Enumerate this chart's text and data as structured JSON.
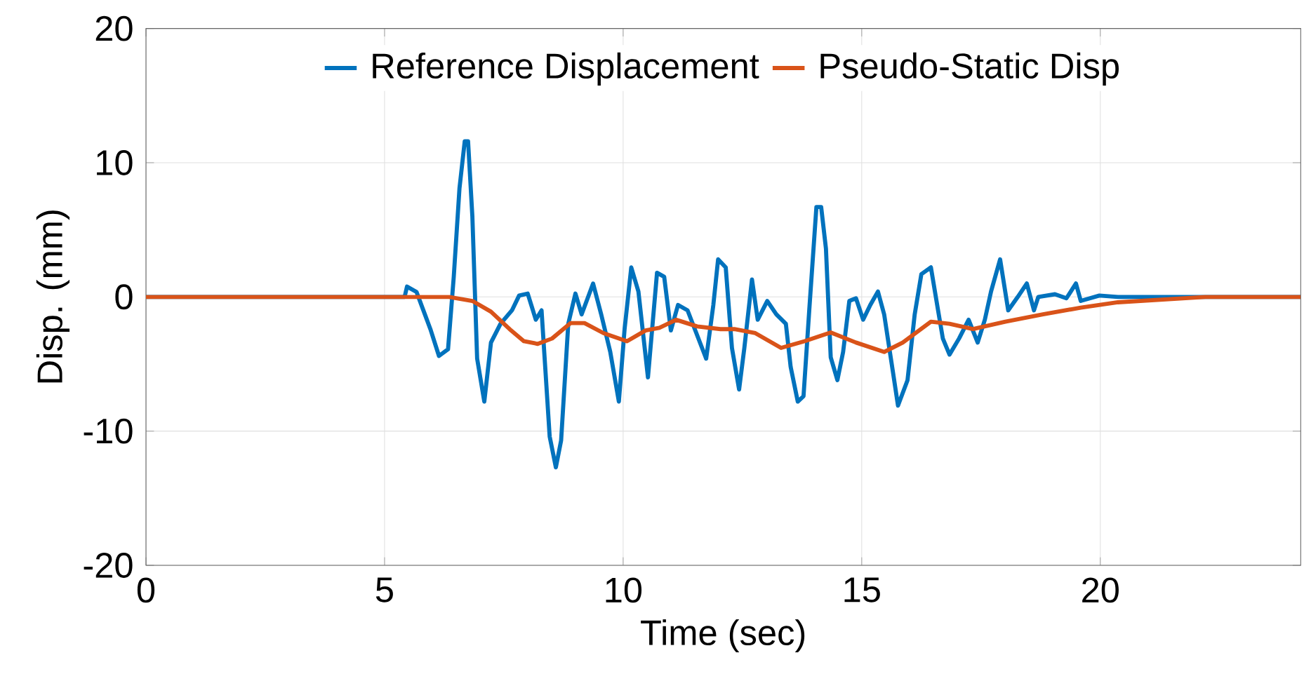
{
  "chart_data": {
    "type": "line",
    "xlabel": "Time (sec)",
    "ylabel": "Disp. (mm)",
    "xlim": [
      0,
      24.2
    ],
    "ylim": [
      -20,
      20
    ],
    "xticks": [
      0,
      5,
      10,
      15,
      20
    ],
    "yticks": [
      -20,
      -10,
      0,
      10,
      20
    ],
    "grid": true,
    "legend": "top",
    "marker": "none",
    "line_style": "solid",
    "series": [
      {
        "name": "Reference Displacement",
        "color": "#0072bd",
        "x": [
          0,
          5.42,
          5.47,
          5.67,
          5.81,
          5.96,
          6.14,
          6.33,
          6.45,
          6.57,
          6.68,
          6.75,
          6.84,
          6.94,
          7.09,
          7.23,
          7.43,
          7.67,
          7.82,
          8.0,
          8.17,
          8.29,
          8.46,
          8.59,
          8.7,
          8.85,
          9.0,
          9.13,
          9.37,
          9.54,
          9.73,
          9.91,
          10.03,
          10.17,
          10.32,
          10.52,
          10.71,
          10.86,
          11.0,
          11.15,
          11.35,
          11.74,
          11.89,
          11.99,
          12.15,
          12.28,
          12.43,
          12.54,
          12.7,
          12.82,
          13.02,
          13.21,
          13.41,
          13.51,
          13.66,
          13.78,
          13.9,
          14.05,
          14.15,
          14.25,
          14.35,
          14.49,
          14.61,
          14.74,
          14.88,
          15.03,
          15.18,
          15.34,
          15.47,
          15.65,
          15.76,
          15.96,
          16.11,
          16.25,
          16.45,
          16.6,
          16.7,
          16.84,
          17.04,
          17.24,
          17.43,
          17.58,
          17.71,
          17.9,
          18.07,
          18.27,
          18.46,
          18.61,
          18.7,
          19.05,
          19.29,
          19.49,
          19.59,
          19.98,
          20.37,
          24.2
        ],
        "values": [
          0,
          0,
          0.77,
          0.37,
          -0.97,
          -2.4,
          -4.4,
          -3.9,
          1.5,
          8.1,
          11.6,
          11.6,
          6.0,
          -4.6,
          -7.8,
          -3.4,
          -2.0,
          -1.0,
          0.1,
          0.25,
          -1.7,
          -1.0,
          -10.4,
          -12.7,
          -10.7,
          -2.0,
          0.25,
          -1.3,
          1.0,
          -1.3,
          -4.1,
          -7.8,
          -2.4,
          2.2,
          0.4,
          -6.0,
          1.8,
          1.5,
          -2.5,
          -0.6,
          -1.0,
          -4.6,
          -0.6,
          2.8,
          2.2,
          -3.8,
          -6.9,
          -3.8,
          1.3,
          -1.7,
          -0.3,
          -1.3,
          -2.0,
          -5.2,
          -7.8,
          -7.4,
          -1.0,
          6.7,
          6.7,
          3.6,
          -4.5,
          -6.2,
          -4.1,
          -0.3,
          -0.1,
          -1.7,
          -0.6,
          0.4,
          -1.3,
          -5.5,
          -8.1,
          -6.2,
          -1.3,
          1.7,
          2.2,
          -1.0,
          -3.1,
          -4.3,
          -3.1,
          -1.7,
          -3.4,
          -1.7,
          0.4,
          2.8,
          -1.0,
          0.0,
          1.0,
          -1.0,
          0.0,
          0.2,
          -0.1,
          1.0,
          -0.3,
          0.1,
          0,
          0
        ]
      },
      {
        "name": "Pseudo-Static Disp",
        "color": "#d95319",
        "x": [
          0,
          4.88,
          6.35,
          6.84,
          7.23,
          7.62,
          7.92,
          8.21,
          8.51,
          8.9,
          9.19,
          9.59,
          10.08,
          10.47,
          10.76,
          11.11,
          11.55,
          12.04,
          12.33,
          12.77,
          13.31,
          13.8,
          14.35,
          14.88,
          15.47,
          15.86,
          16.45,
          16.84,
          17.33,
          18.01,
          18.8,
          19.59,
          20.37,
          22.2,
          24.2
        ],
        "values": [
          0,
          0,
          0,
          -0.3,
          -1.1,
          -2.4,
          -3.3,
          -3.5,
          -3.1,
          -1.95,
          -1.95,
          -2.7,
          -3.3,
          -2.5,
          -2.3,
          -1.7,
          -2.2,
          -2.4,
          -2.4,
          -2.7,
          -3.8,
          -3.3,
          -2.65,
          -3.4,
          -4.1,
          -3.4,
          -1.85,
          -2.0,
          -2.4,
          -1.85,
          -1.3,
          -0.8,
          -0.4,
          0,
          0
        ]
      }
    ]
  }
}
